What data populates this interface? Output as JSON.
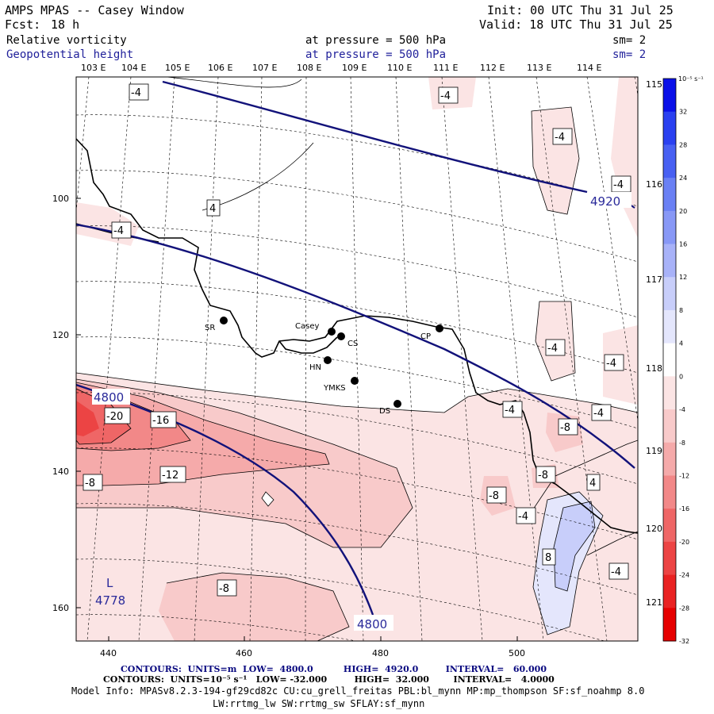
{
  "header": {
    "model": "AMPS MPAS -- Casey Window",
    "fcst_label": "Fcst:",
    "fcst_value": "18 h",
    "init": "Init: 00 UTC Thu 31 Jul 25",
    "valid": "Valid: 18 UTC Thu 31 Jul 25",
    "field1": "Relative vorticity",
    "field1_level": "at pressure = 500 hPa",
    "field1_sm": "sm= 2",
    "field2": "Geopotential height",
    "field2_level": "at pressure = 500 hPa",
    "field2_sm": "sm= 2"
  },
  "lon_labels": [
    "103 E",
    "104 E",
    "105 E",
    "106 E",
    "107 E",
    "108 E",
    "109 E",
    "110 E",
    "111 E",
    "112 E",
    "113 E",
    "114 E"
  ],
  "lon_labels_right": [
    "115 E",
    "116 E",
    "117 E",
    "118 E",
    "119 E",
    "120 E",
    "121 E"
  ],
  "y_ticks": [
    "100",
    "120",
    "140",
    "160"
  ],
  "x_ticks": [
    "440",
    "460",
    "480",
    "500"
  ],
  "colorbar": {
    "unit": "10⁻⁵ s⁻¹",
    "labels": [
      "32",
      "28",
      "24",
      "20",
      "16",
      "12",
      "8",
      "4",
      "0",
      "-4",
      "-8",
      "-12",
      "-16",
      "-20",
      "-24",
      "-28",
      "-32"
    ],
    "colors": [
      "#0a10e8",
      "#2a40f0",
      "#4860f2",
      "#6a80f4",
      "#8898f6",
      "#a8b2f8",
      "#c8cefa",
      "#e4e6fc",
      "#ffffff",
      "#fbe4e4",
      "#f8caca",
      "#f5aaaa",
      "#f28888",
      "#ef6666",
      "#ec4444",
      "#e92222",
      "#e60000"
    ]
  },
  "stations": [
    {
      "id": "SR",
      "label": "SR"
    },
    {
      "id": "Casey",
      "label": "Casey"
    },
    {
      "id": "CS",
      "label": "CS"
    },
    {
      "id": "CP",
      "label": "CP"
    },
    {
      "id": "HN",
      "label": "HN"
    },
    {
      "id": "YMKS",
      "label": "YMKS"
    },
    {
      "id": "DS",
      "label": "DS"
    }
  ],
  "contour_labels": [
    "-4",
    "-4",
    "-4",
    "-4",
    "4",
    "-4",
    "-4",
    "-4",
    "-4",
    "-4",
    "-8",
    "-20",
    "-16",
    "-8",
    "-12",
    "-8",
    "-8",
    "-4",
    "4",
    "8",
    "-4",
    "-8"
  ],
  "height_labels": [
    "4920",
    "4800",
    "4800"
  ],
  "low_marker": {
    "symbol": "L",
    "value": "4778"
  },
  "footer": {
    "line1": "CONTOURS:  UNITS=m  LOW=  4800.0          HIGH=  4920.0         INTERVAL=   60.000",
    "line2": "CONTOURS:  UNITS=10⁻⁵ s⁻¹   LOW= -32.000         HIGH=  32.000        INTERVAL=   4.0000",
    "line3": "Model Info: MPASv8.2.3-194-gf29cd82c CU:cu_grell_freitas PBL:bl_mynn MP:mp_thompson SF:sf_noahmp 8.0",
    "line4": "LW:rrtmg_lw SW:rrtmg_sw SFLAY:sf_mynn"
  }
}
